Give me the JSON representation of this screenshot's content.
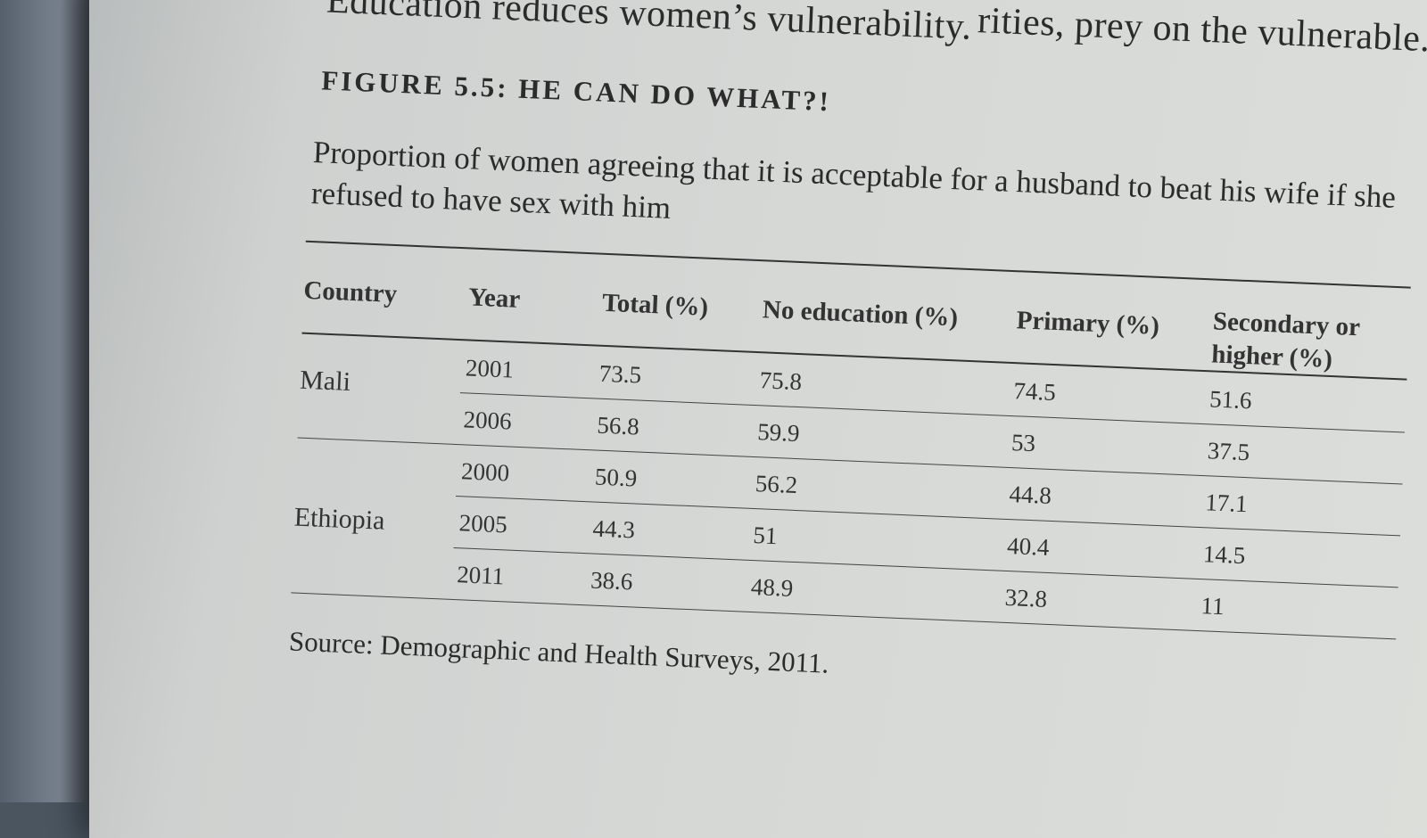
{
  "header": {
    "prev_text_left": "Education reduces women’s vulnerability.",
    "prev_text_right": "rities, prey on the vulnerable."
  },
  "figure": {
    "label": "FIGURE 5.5: HE CAN DO WHAT?!",
    "caption": "Proportion of women agreeing that it is acceptable for a husband to beat his wife if she refused to have sex with him"
  },
  "table": {
    "columns": [
      "Country",
      "Year",
      "Total (%)",
      "No education (%)",
      "Primary (%)",
      "Secondary or higher (%)"
    ],
    "countries": [
      "Mali",
      "Ethiopia"
    ],
    "rows": [
      {
        "year": "2001",
        "total": "73.5",
        "no_education": "75.8",
        "primary": "74.5",
        "secondary": "51.6"
      },
      {
        "year": "2006",
        "total": "56.8",
        "no_education": "59.9",
        "primary": "53",
        "secondary": "37.5"
      },
      {
        "year": "2000",
        "total": "50.9",
        "no_education": "56.2",
        "primary": "44.8",
        "secondary": "17.1"
      },
      {
        "year": "2005",
        "total": "44.3",
        "no_education": "51",
        "primary": "40.4",
        "secondary": "14.5"
      },
      {
        "year": "2011",
        "total": "38.6",
        "no_education": "48.9",
        "primary": "32.8",
        "secondary": "11"
      }
    ]
  },
  "source": "Source: Demographic and Health Surveys, 2011."
}
